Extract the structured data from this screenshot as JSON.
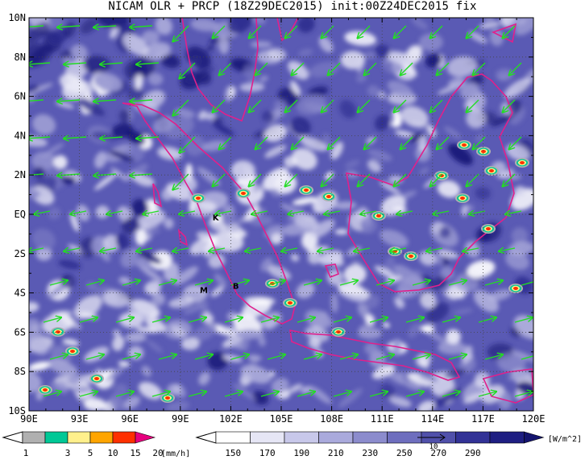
{
  "title": "NICAM OLR + PRCP (18Z29DEC2015) init:00Z24DEC2015 fix",
  "lat_labels": [
    "10N",
    "8N",
    "6N",
    "4N",
    "2N",
    "EQ",
    "2S",
    "4S",
    "6S",
    "8S",
    "10S"
  ],
  "lon_labels": [
    "90E",
    "93E",
    "96E",
    "99E",
    "102E",
    "105E",
    "108E",
    "111E",
    "114E",
    "117E",
    "120E"
  ],
  "map_extent": {
    "lon": [
      90,
      120
    ],
    "lat": [
      -10,
      10
    ]
  },
  "station_labels": [
    {
      "text": "K",
      "lon": 101.1,
      "lat": -0.3
    },
    {
      "text": "M",
      "lon": 100.4,
      "lat": -4.0
    },
    {
      "text": "B",
      "lon": 102.3,
      "lat": -3.8
    }
  ],
  "precip_legend": {
    "labels": [
      "1",
      "3",
      "5",
      "10",
      "15",
      "20"
    ],
    "unit": "[mm/h]",
    "colors": [
      "#b0b0b0",
      "#00c896",
      "#fff08c",
      "#ffa500",
      "#ff3000",
      "#e6007e"
    ]
  },
  "olr_legend": {
    "labels": [
      "150",
      "170",
      "190",
      "210",
      "230",
      "250",
      "270",
      "290"
    ],
    "unit": "[W/m^2]",
    "colors": [
      "#ffffff",
      "#e6e6f5",
      "#c8c8ea",
      "#aaaadc",
      "#8c8ccd",
      "#6e6ebe",
      "#5050aa",
      "#323296",
      "#1e1e82",
      "#14146e"
    ],
    "vector_ref": "10"
  },
  "colors": {
    "coastline": "#e0208c",
    "wind_vector": "#22dd22",
    "grid": "#444444"
  }
}
